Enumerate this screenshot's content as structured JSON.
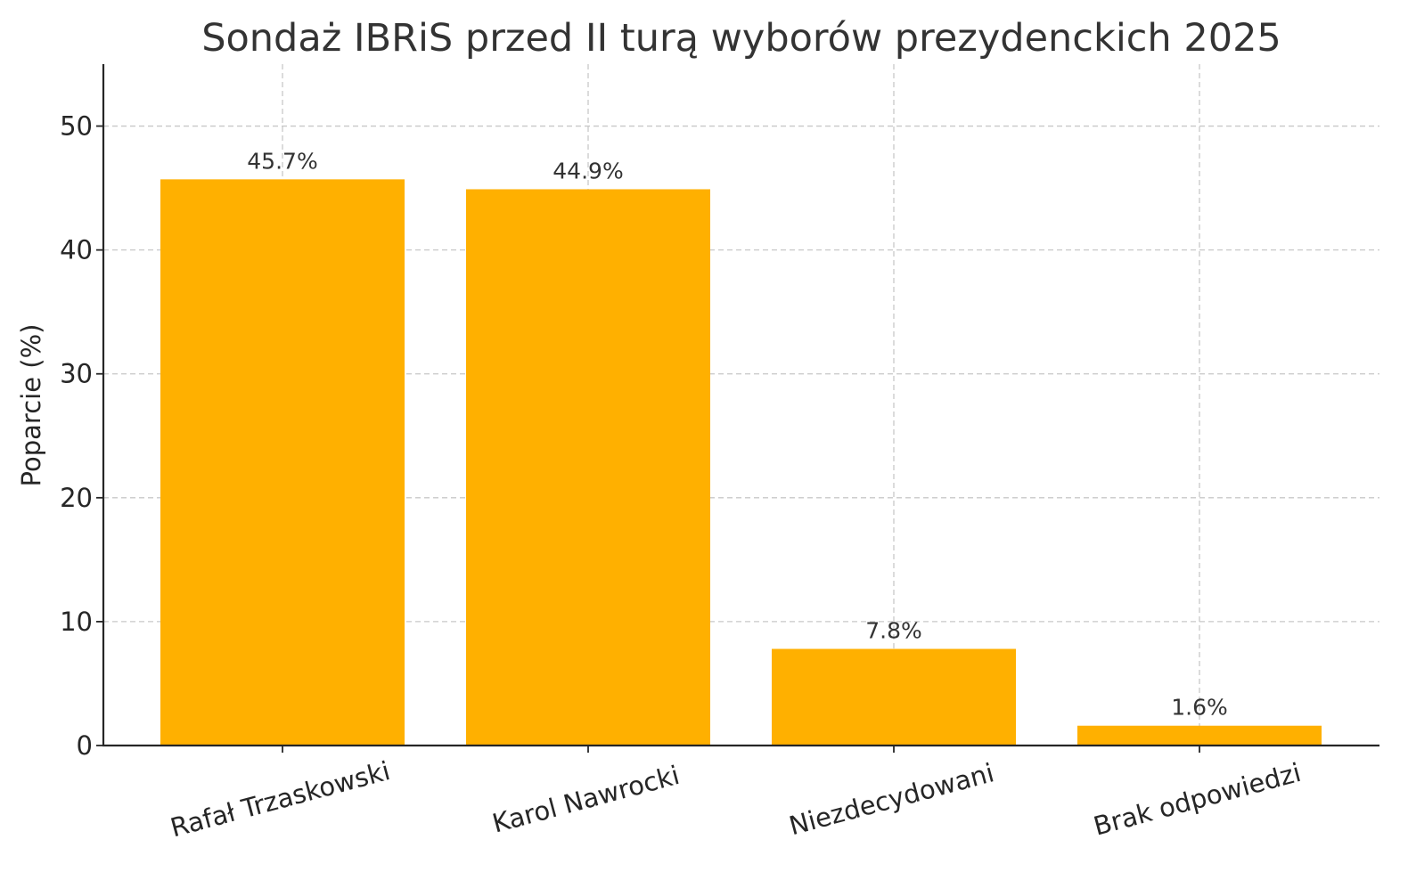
{
  "chart_data": {
    "type": "bar",
    "title": "Sondaż IBRiS przed II turą wyborów prezydenckich 2025",
    "xlabel": "",
    "ylabel": "Poparcie (%)",
    "categories": [
      "Rafał Trzaskowski",
      "Karol Nawrocki",
      "Niezdecydowani",
      "Brak odpowiedzi"
    ],
    "values": [
      45.7,
      44.9,
      7.8,
      1.6
    ],
    "data_labels": [
      "45.7%",
      "44.9%",
      "7.8%",
      "1.6%"
    ],
    "ylim": [
      0,
      55
    ],
    "yticks": [
      0,
      10,
      20,
      30,
      40,
      50
    ],
    "grid": true,
    "bar_color": "#FFB000",
    "xtick_rotation_deg": -15
  }
}
